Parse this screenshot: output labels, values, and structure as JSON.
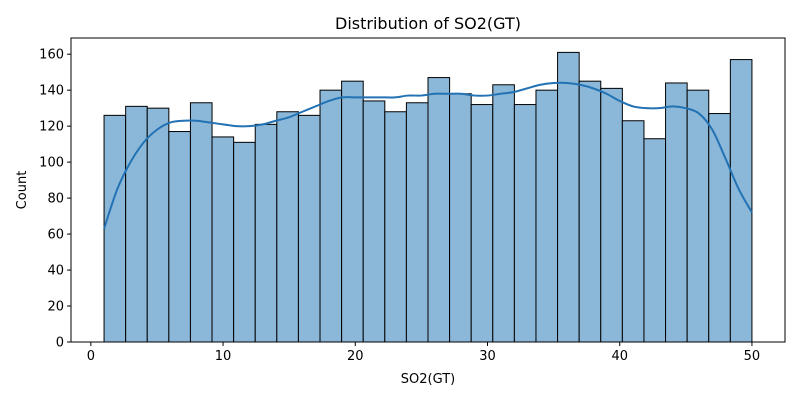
{
  "chart_data": {
    "type": "bar",
    "title": "Distribution of SO2(GT)",
    "xlabel": "SO2(GT)",
    "ylabel": "Count",
    "xlim": [
      -1.5,
      52.5
    ],
    "ylim": [
      0,
      169
    ],
    "xticks": [
      0,
      10,
      20,
      30,
      40,
      50
    ],
    "yticks": [
      0,
      20,
      40,
      60,
      80,
      100,
      120,
      140,
      160
    ],
    "grid": false,
    "bar_color": "#8bb8d9",
    "bar_edge_color": "#000000",
    "kde_color": "#2272b4",
    "bins": {
      "start": 1,
      "end": 50,
      "counts": [
        126,
        131,
        130,
        117,
        133,
        114,
        111,
        121,
        128,
        126,
        140,
        145,
        134,
        128,
        133,
        147,
        138,
        132,
        143,
        132,
        140,
        161,
        145,
        141,
        123,
        113,
        144,
        140,
        127,
        157
      ]
    },
    "kde_curve": {
      "x": [
        1,
        2,
        3,
        4,
        5,
        6,
        7,
        8,
        9,
        10,
        11,
        12,
        13,
        14,
        15,
        16,
        17,
        18,
        19,
        20,
        21,
        22,
        23,
        24,
        25,
        26,
        27,
        28,
        29,
        30,
        31,
        32,
        33,
        34,
        35,
        36,
        37,
        38,
        39,
        40,
        41,
        42,
        43,
        44,
        45,
        46,
        47,
        48,
        49,
        50
      ],
      "y": [
        63,
        85,
        100,
        111,
        118,
        122,
        123,
        123,
        122,
        121,
        120,
        120,
        121,
        123,
        125,
        128,
        131,
        134,
        136,
        136,
        136,
        136,
        136,
        137,
        137,
        138,
        138,
        138,
        137,
        137,
        138,
        139,
        141,
        143,
        144,
        144,
        143,
        141,
        138,
        134,
        131,
        130,
        130,
        131,
        130,
        127,
        118,
        102,
        85,
        72
      ]
    }
  }
}
